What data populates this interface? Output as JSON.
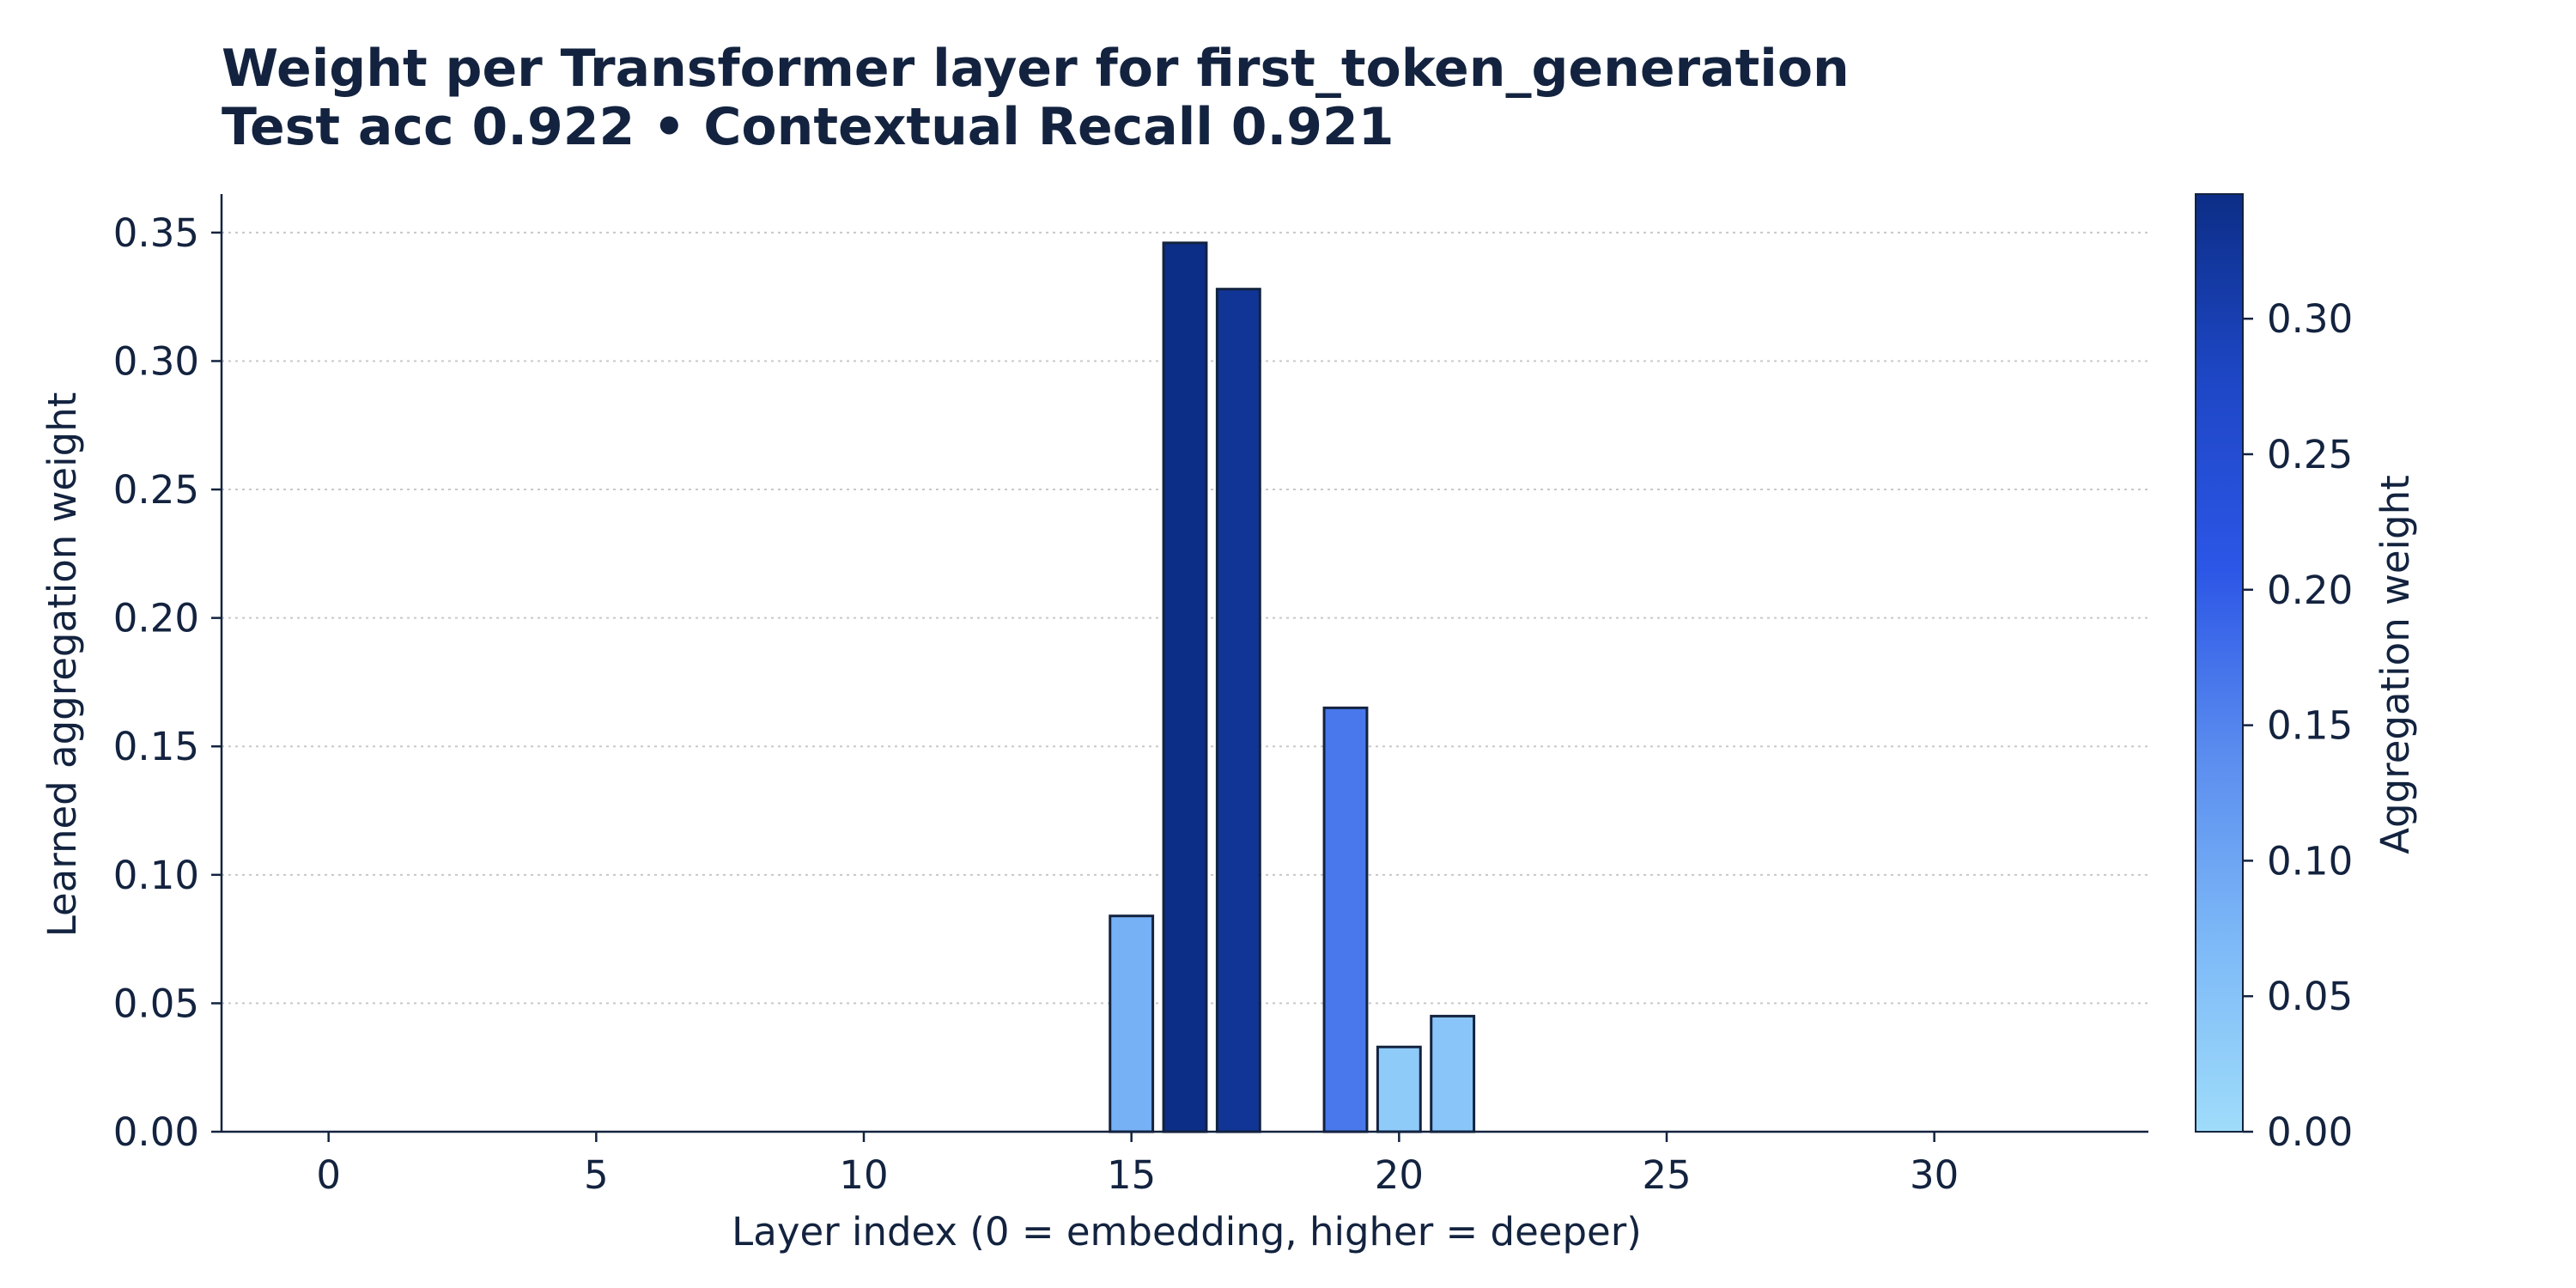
{
  "chart_data": {
    "type": "bar",
    "title": "Weight per Transformer layer for first_token_generation",
    "subtitle": "Test acc 0.922 • Contextual Recall 0.921",
    "xlabel": "Layer index (0 = embedding, higher = deeper)",
    "ylabel": "Learned aggregation weight",
    "xlim": [
      -2,
      34
    ],
    "ylim": [
      0,
      0.365
    ],
    "x": [
      0,
      1,
      2,
      3,
      4,
      5,
      6,
      7,
      8,
      9,
      10,
      11,
      12,
      13,
      14,
      15,
      16,
      17,
      18,
      19,
      20,
      21,
      22,
      23,
      24,
      25,
      26,
      27,
      28,
      29,
      30,
      31,
      32
    ],
    "values": [
      0,
      0,
      0,
      0,
      0,
      0,
      0,
      0,
      0,
      0,
      0,
      0,
      0,
      0,
      0,
      0.084,
      0.346,
      0.328,
      0,
      0.165,
      0.033,
      0.045,
      0,
      0,
      0,
      0,
      0,
      0,
      0,
      0,
      0,
      0,
      0
    ],
    "xticks": [
      0,
      5,
      10,
      15,
      20,
      25,
      30
    ],
    "xtick_labels": [
      "0",
      "5",
      "10",
      "15",
      "20",
      "25",
      "30"
    ],
    "yticks": [
      0,
      0.05,
      0.1,
      0.15,
      0.2,
      0.25,
      0.3,
      0.35
    ],
    "ytick_labels": [
      "0.00",
      "0.05",
      "0.10",
      "0.15",
      "0.20",
      "0.25",
      "0.30",
      "0.35"
    ],
    "grid": "horizontal dotted",
    "colorbar": {
      "label": "Aggregation weight",
      "range": [
        0,
        0.346
      ],
      "ticks": [
        0,
        0.05,
        0.1,
        0.15,
        0.2,
        0.25,
        0.3
      ],
      "tick_labels": [
        "0.00",
        "0.05",
        "0.10",
        "0.15",
        "0.20",
        "0.25",
        "0.30"
      ],
      "colors": [
        "#9fdcfa",
        "#7db9f7",
        "#5b8def",
        "#2c56e6",
        "#1e47c6",
        "#0c2e87"
      ]
    },
    "text_color": "#13233f"
  }
}
